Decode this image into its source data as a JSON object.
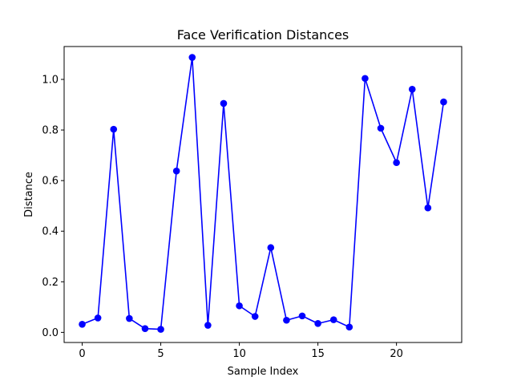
{
  "chart_data": {
    "type": "line",
    "title": "Face Verification Distances",
    "xlabel": "Sample Index",
    "ylabel": "Distance",
    "xlim": [
      -1.15,
      24.15
    ],
    "ylim": [
      -0.04,
      1.13
    ],
    "xticks": [
      0,
      5,
      10,
      15,
      20
    ],
    "xtick_labels": [
      "0",
      "5",
      "10",
      "15",
      "20"
    ],
    "yticks": [
      0.0,
      0.2,
      0.4,
      0.6,
      0.8,
      1.0
    ],
    "ytick_labels": [
      "0.0",
      "0.2",
      "0.4",
      "0.6",
      "0.8",
      "1.0"
    ],
    "grid": false,
    "series": [
      {
        "color": "#0000ff",
        "marker": "circle",
        "x": [
          0,
          1,
          2,
          3,
          4,
          5,
          6,
          7,
          8,
          9,
          10,
          11,
          12,
          13,
          14,
          15,
          16,
          17,
          18,
          19,
          20,
          21,
          22,
          23
        ],
        "values": [
          0.032,
          0.057,
          0.803,
          0.055,
          0.015,
          0.012,
          0.638,
          1.087,
          0.028,
          0.905,
          0.105,
          0.063,
          0.335,
          0.048,
          0.065,
          0.035,
          0.05,
          0.021,
          1.004,
          0.807,
          0.671,
          0.961,
          0.492,
          0.911
        ]
      }
    ]
  }
}
